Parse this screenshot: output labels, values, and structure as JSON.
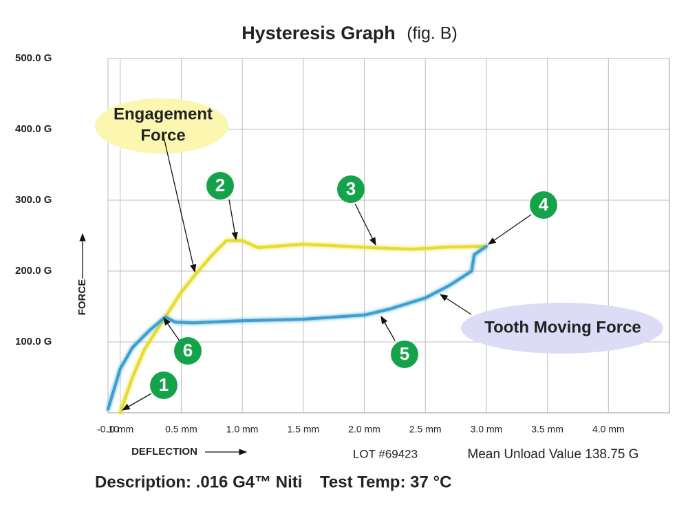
{
  "chart_data": {
    "type": "line",
    "title": "Hysteresis Graph",
    "subtitle": "(fig. B)",
    "x_label": "DEFLECTION",
    "y_label": "FORCE",
    "xlim": [
      -0.1,
      4.5
    ],
    "ylim": [
      0,
      500
    ],
    "xticks": [
      {
        "value": -0.1,
        "label": "-0.10"
      },
      {
        "value": 0,
        "label": ".0 mm"
      },
      {
        "value": 0.5,
        "label": "0.5 mm"
      },
      {
        "value": 1,
        "label": "1.0 mm"
      },
      {
        "value": 1.5,
        "label": "1.5 mm"
      },
      {
        "value": 2,
        "label": "2.0 mm"
      },
      {
        "value": 2.5,
        "label": "2.5 mm"
      },
      {
        "value": 3,
        "label": "3.0 mm"
      },
      {
        "value": 3.5,
        "label": "3.5 mm"
      },
      {
        "value": 4,
        "label": "4.0 mm"
      }
    ],
    "yticks": [
      {
        "value": 100,
        "label": "100.0 G"
      },
      {
        "value": 200,
        "label": "200.0 G"
      },
      {
        "value": 300,
        "label": "300.0 G"
      },
      {
        "value": 400,
        "label": "400.0 G"
      },
      {
        "value": 500,
        "label": "500.0 G"
      }
    ],
    "grid": true,
    "series": [
      {
        "color": "#e6dc2e",
        "x": [
          0,
          0.1,
          0.2,
          0.35,
          0.5,
          0.62,
          0.75,
          0.87,
          1.0,
          1.13,
          1.5,
          2.06,
          2.4,
          2.7,
          3.0
        ],
        "values": [
          0,
          50,
          90,
          130,
          170,
          196,
          222,
          243,
          243,
          233,
          238,
          233,
          231,
          234,
          235
        ]
      },
      {
        "color": "#3a9fd0",
        "x": [
          3.0,
          2.9,
          2.88,
          2.7,
          2.5,
          2.2,
          2.0,
          1.5,
          1.0,
          0.6,
          0.45,
          0.37,
          0.25,
          0.1,
          0,
          -0.1
        ],
        "values": [
          235,
          223,
          200,
          180,
          162,
          146,
          138,
          132,
          130,
          127,
          128,
          135,
          118,
          92,
          62,
          5
        ]
      }
    ],
    "annotations": [
      [
        "Engagement",
        "Force"
      ],
      "Tooth Moving Force"
    ],
    "markers": [
      "1",
      "2",
      "3",
      "4",
      "5",
      "6"
    ],
    "lot": "LOT #69423",
    "mean_unload": "Mean Unload Value 138.75 G",
    "description": "Description: .016 G4™ Niti",
    "test_temp": "Test Temp: 37 °C"
  }
}
